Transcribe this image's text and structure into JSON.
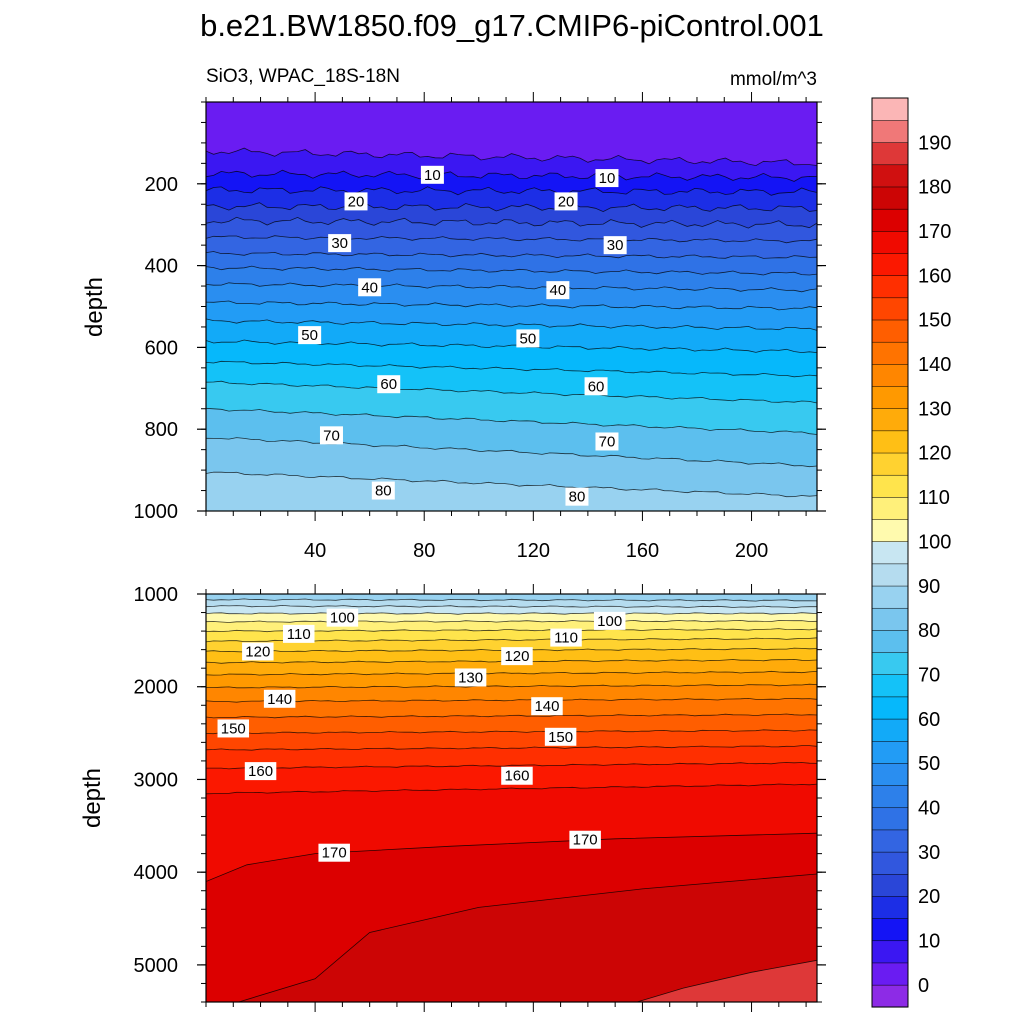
{
  "title": "b.e21.BW1850.f09_g17.CMIP6-piControl.001",
  "left_label": "SiO3, WPAC_18S-18N",
  "units_label": "mmol/m^3",
  "chart_data": [
    {
      "type": "contour",
      "panel": "upper",
      "ylabel": "depth",
      "xlabel": "",
      "xlim": [
        0,
        224
      ],
      "ylim": [
        1000,
        0
      ],
      "x_ticks": [
        "40",
        "80",
        "120",
        "160",
        "200"
      ],
      "y_ticks": [
        "200",
        "400",
        "600",
        "800",
        "1000"
      ],
      "contour_levels": [
        5,
        10,
        15,
        20,
        25,
        30,
        35,
        40,
        45,
        50,
        55,
        60,
        65,
        70,
        75,
        80,
        85
      ],
      "contour_depth_left": [
        120,
        175,
        215,
        255,
        290,
        330,
        370,
        405,
        445,
        490,
        535,
        585,
        635,
        685,
        750,
        820,
        905
      ],
      "contour_depth_right": [
        150,
        185,
        220,
        260,
        300,
        340,
        380,
        420,
        460,
        505,
        555,
        610,
        670,
        735,
        810,
        890,
        965
      ],
      "contour_labels": [
        {
          "text": "10",
          "x": 83,
          "depth": 178
        },
        {
          "text": "10",
          "x": 147,
          "depth": 186
        },
        {
          "text": "20",
          "x": 55,
          "depth": 243
        },
        {
          "text": "20",
          "x": 132,
          "depth": 243
        },
        {
          "text": "30",
          "x": 49,
          "depth": 345
        },
        {
          "text": "30",
          "x": 150,
          "depth": 350
        },
        {
          "text": "40",
          "x": 60,
          "depth": 453
        },
        {
          "text": "40",
          "x": 129,
          "depth": 460
        },
        {
          "text": "50",
          "x": 38,
          "depth": 570
        },
        {
          "text": "50",
          "x": 118,
          "depth": 578
        },
        {
          "text": "60",
          "x": 67,
          "depth": 690
        },
        {
          "text": "60",
          "x": 143,
          "depth": 695
        },
        {
          "text": "70",
          "x": 46,
          "depth": 815
        },
        {
          "text": "70",
          "x": 147,
          "depth": 830
        },
        {
          "text": "80",
          "x": 65,
          "depth": 950
        },
        {
          "text": "80",
          "x": 136,
          "depth": 965
        }
      ]
    },
    {
      "type": "contour",
      "panel": "lower",
      "ylabel": "depth",
      "xlabel": "",
      "xlim": [
        0,
        224
      ],
      "ylim": [
        5400,
        1000
      ],
      "y_ticks": [
        "1000",
        "2000",
        "3000",
        "4000",
        "5000"
      ],
      "contour_levels": [
        90,
        95,
        100,
        105,
        110,
        115,
        120,
        125,
        130,
        135,
        140,
        145,
        150,
        155,
        160,
        165
      ],
      "contour_depth_left": [
        1060,
        1130,
        1210,
        1300,
        1400,
        1510,
        1620,
        1740,
        1870,
        2010,
        2160,
        2330,
        2500,
        2680,
        2880,
        3150
      ],
      "contour_depth_right": [
        1070,
        1140,
        1210,
        1290,
        1380,
        1480,
        1590,
        1710,
        1840,
        1980,
        2130,
        2300,
        2470,
        2640,
        2820,
        3050
      ],
      "contour_labels": [
        {
          "text": "100",
          "x": 50,
          "depth": 1255
        },
        {
          "text": "100",
          "x": 148,
          "depth": 1290
        },
        {
          "text": "110",
          "x": 34,
          "depth": 1430
        },
        {
          "text": "110",
          "x": 132,
          "depth": 1470
        },
        {
          "text": "120",
          "x": 19,
          "depth": 1620
        },
        {
          "text": "120",
          "x": 114,
          "depth": 1670
        },
        {
          "text": "130",
          "x": 97,
          "depth": 1900
        },
        {
          "text": "140",
          "x": 27,
          "depth": 2130
        },
        {
          "text": "140",
          "x": 125,
          "depth": 2210
        },
        {
          "text": "150",
          "x": 10,
          "depth": 2450
        },
        {
          "text": "150",
          "x": 130,
          "depth": 2540
        },
        {
          "text": "160",
          "x": 20,
          "depth": 2910
        },
        {
          "text": "160",
          "x": 114,
          "depth": 2960
        },
        {
          "text": "170",
          "x": 47,
          "depth": 3790
        },
        {
          "text": "170",
          "x": 139,
          "depth": 3650
        }
      ]
    },
    {
      "type": "colorbar",
      "levels": [
        -5,
        0,
        5,
        10,
        15,
        20,
        25,
        30,
        35,
        40,
        45,
        50,
        55,
        60,
        65,
        70,
        75,
        80,
        85,
        90,
        95,
        100,
        105,
        110,
        115,
        120,
        125,
        130,
        135,
        140,
        145,
        150,
        155,
        160,
        165,
        170,
        175,
        180,
        185,
        190,
        195
      ],
      "tick_labels": [
        "0",
        "10",
        "20",
        "30",
        "40",
        "50",
        "60",
        "70",
        "80",
        "90",
        "100",
        "110",
        "120",
        "130",
        "140",
        "150",
        "160",
        "170",
        "180",
        "190"
      ],
      "colors": [
        "#8d2be6",
        "#6a1cf2",
        "#3b17f2",
        "#1414f5",
        "#1c2ee6",
        "#2a46d8",
        "#3157de",
        "#3365e2",
        "#2f72e6",
        "#2d80ea",
        "#2a8ef0",
        "#229cf5",
        "#12aaf8",
        "#06b8fb",
        "#14c2f8",
        "#38c9f0",
        "#5cbfee",
        "#7ac6ee",
        "#98d2f0",
        "#b5dcef",
        "#c8e6f2",
        "#fffaae",
        "#fff07a",
        "#ffe44c",
        "#ffd230",
        "#ffbf15",
        "#ffab0a",
        "#ff9900",
        "#ff8600",
        "#ff7300",
        "#ff5e00",
        "#ff4600",
        "#ff2f00",
        "#fb1800",
        "#f00a00",
        "#dc0000",
        "#cc0505",
        "#d01010",
        "#de3838",
        "#f07878",
        "#fbb6b6"
      ]
    }
  ]
}
